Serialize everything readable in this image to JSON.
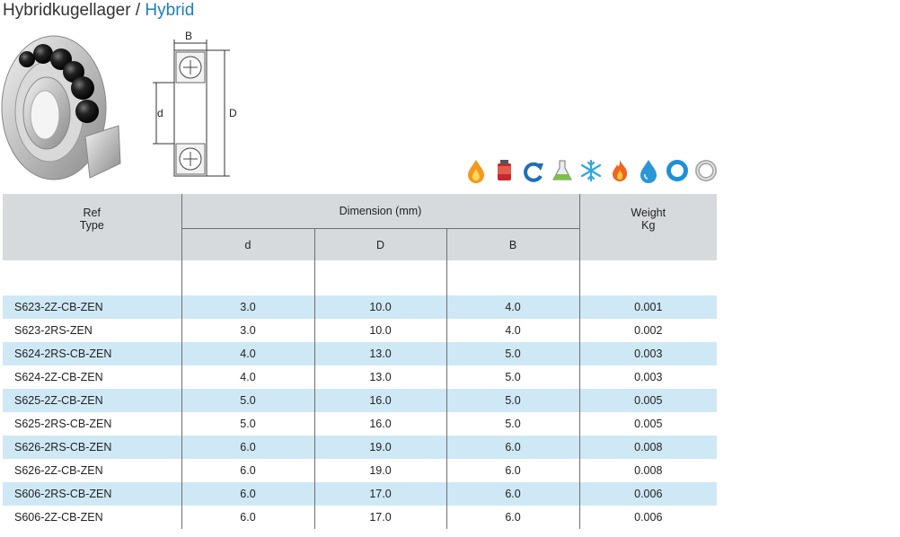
{
  "title": {
    "main": "Hybridkugellager",
    "sep": " / ",
    "accent": "Hybrid"
  },
  "diagram": {
    "label_b": "B",
    "label_d_small": "d",
    "label_d_large": "D"
  },
  "icons": [
    "water-drop-flame-icon",
    "lubricant-can-icon",
    "rotation-arrow-icon",
    "chemical-flask-icon",
    "snowflake-icon",
    "flame-icon",
    "water-drop-icon",
    "blue-ring-icon",
    "grey-ring-icon"
  ],
  "colors": {
    "header_bg": "#d7dadd",
    "row_highlight": "#cfe8f6",
    "title_accent": "#1a7fc1"
  },
  "table": {
    "headers": {
      "ref_line1": "Ref",
      "ref_line2": "Type",
      "dimension": "Dimension (mm)",
      "d": "d",
      "D": "D",
      "B": "B",
      "weight_line1": "Weight",
      "weight_line2": "Kg"
    },
    "rows": [
      {
        "ref": "S623-2Z-CB-ZEN",
        "d": "3.0",
        "D": "10.0",
        "B": "4.0",
        "weight": "0.001"
      },
      {
        "ref": "S623-2RS-ZEN",
        "d": "3.0",
        "D": "10.0",
        "B": "4.0",
        "weight": "0.002"
      },
      {
        "ref": "S624-2RS-CB-ZEN",
        "d": "4.0",
        "D": "13.0",
        "B": "5.0",
        "weight": "0.003"
      },
      {
        "ref": "S624-2Z-CB-ZEN",
        "d": "4.0",
        "D": "13.0",
        "B": "5.0",
        "weight": "0.003"
      },
      {
        "ref": "S625-2Z-CB-ZEN",
        "d": "5.0",
        "D": "16.0",
        "B": "5.0",
        "weight": "0.005"
      },
      {
        "ref": "S625-2RS-CB-ZEN",
        "d": "5.0",
        "D": "16.0",
        "B": "5.0",
        "weight": "0.005"
      },
      {
        "ref": "S626-2RS-CB-ZEN",
        "d": "6.0",
        "D": "19.0",
        "B": "6.0",
        "weight": "0.008"
      },
      {
        "ref": "S626-2Z-CB-ZEN",
        "d": "6.0",
        "D": "19.0",
        "B": "6.0",
        "weight": "0.008"
      },
      {
        "ref": "S606-2RS-CB-ZEN",
        "d": "6.0",
        "D": "17.0",
        "B": "6.0",
        "weight": "0.006"
      },
      {
        "ref": "S606-2Z-CB-ZEN",
        "d": "6.0",
        "D": "17.0",
        "B": "6.0",
        "weight": "0.006"
      }
    ]
  }
}
